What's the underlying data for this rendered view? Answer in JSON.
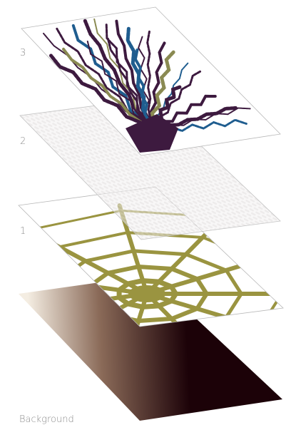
{
  "layers": {
    "layer3": {
      "label": "3",
      "colors": {
        "rays_primary": "#3d1a3f",
        "rays_secondary": "#1f5d8f",
        "rays_tertiary": "#8a8a52",
        "plane_border": "#b8b8b8"
      }
    },
    "layer2": {
      "label": "2",
      "colors": {
        "plane_fill": "#f3f1f1",
        "pattern": "#dedada",
        "plane_border": "#c2c2c2"
      }
    },
    "layer1": {
      "label": "1",
      "colors": {
        "web": "#9a9440",
        "plane_border": "#b8b8b8"
      }
    },
    "background": {
      "label": "Background",
      "colors": {
        "gradient_light": "#f4ede2",
        "gradient_mid": "#8a6a58",
        "gradient_dark": "#1c0208"
      }
    }
  }
}
